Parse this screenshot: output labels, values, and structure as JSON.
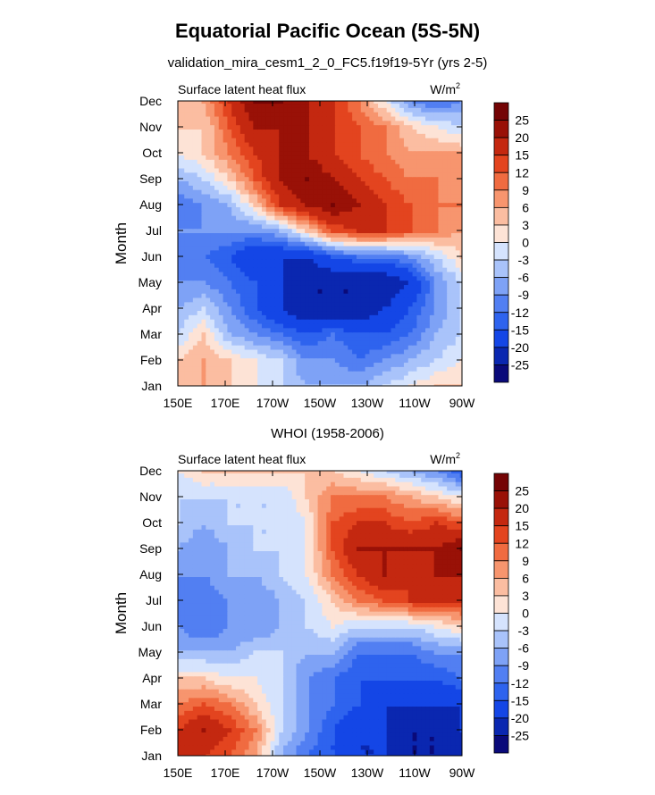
{
  "figure": {
    "title": "Equatorial Pacific Ocean (5S-5N)",
    "panel1_title": "validation_mira_cesm1_2_0_FC5.f19f19-5Yr (yrs 2-5)",
    "panel2_title": "WHOI (1958-2006)"
  },
  "chart_data": [
    {
      "type": "heatmap",
      "title": "validation_mira_cesm1_2_0_FC5.f19f19-5Yr (yrs 2-5)",
      "left_string": "Surface latent heat flux",
      "right_string": "W/m",
      "right_string_sup": "2",
      "xlabel": "",
      "ylabel": "Month",
      "x": [
        "150E",
        "170E",
        "170W",
        "150W",
        "130W",
        "110W",
        "90W"
      ],
      "y": [
        "Jan",
        "Feb",
        "Mar",
        "Apr",
        "May",
        "Jun",
        "Jul",
        "Aug",
        "Sep",
        "Oct",
        "Nov",
        "Dec"
      ],
      "xlim": [
        150,
        270
      ],
      "ylim": [
        1,
        12
      ],
      "z": [
        [
          3,
          6,
          3,
          0,
          -3,
          -6,
          -6,
          -6,
          -3,
          0,
          3,
          3
        ],
        [
          3,
          6,
          3,
          0,
          -3,
          -9,
          -9,
          -12,
          -9,
          -6,
          -3,
          0
        ],
        [
          -3,
          3,
          -6,
          -9,
          -12,
          -15,
          -12,
          -15,
          -15,
          -12,
          -6,
          -3
        ],
        [
          -6,
          -3,
          -9,
          -15,
          -20,
          -25,
          -25,
          -25,
          -20,
          -15,
          -9,
          -3
        ],
        [
          -9,
          -9,
          -12,
          -15,
          -20,
          -25,
          -25,
          -25,
          -25,
          -20,
          -9,
          -3
        ],
        [
          -12,
          -12,
          -15,
          -20,
          -20,
          -20,
          -15,
          -12,
          -12,
          -9,
          -3,
          3
        ],
        [
          -9,
          -9,
          -9,
          -9,
          -6,
          3,
          12,
          15,
          15,
          12,
          9,
          6
        ],
        [
          -12,
          -9,
          -6,
          3,
          15,
          20,
          25,
          20,
          15,
          12,
          9,
          9
        ],
        [
          -6,
          -3,
          3,
          12,
          20,
          25,
          20,
          15,
          12,
          9,
          9,
          6
        ],
        [
          0,
          3,
          9,
          15,
          20,
          20,
          15,
          12,
          9,
          6,
          6,
          6
        ],
        [
          3,
          3,
          12,
          20,
          20,
          20,
          15,
          12,
          9,
          3,
          0,
          -3
        ],
        [
          3,
          6,
          15,
          25,
          25,
          20,
          15,
          9,
          0,
          -9,
          -12,
          -9
        ]
      ],
      "colorbar_levels": [
        25,
        20,
        15,
        12,
        9,
        6,
        3,
        0,
        -3,
        -6,
        -9,
        -12,
        -15,
        -20,
        -25
      ]
    },
    {
      "type": "heatmap",
      "title": "WHOI (1958-2006)",
      "left_string": "Surface latent heat flux",
      "right_string": "W/m",
      "right_string_sup": "2",
      "xlabel": "",
      "ylabel": "Month",
      "x": [
        "150E",
        "170E",
        "170W",
        "150W",
        "130W",
        "110W",
        "90W"
      ],
      "y": [
        "Jan",
        "Feb",
        "Mar",
        "Apr",
        "May",
        "Jun",
        "Jul",
        "Aug",
        "Sep",
        "Oct",
        "Nov",
        "Dec"
      ],
      "xlim": [
        150,
        270
      ],
      "ylim": [
        1,
        12
      ],
      "z": [
        [
          15,
          15,
          12,
          6,
          -6,
          -12,
          -15,
          -20,
          -20,
          -25,
          -25,
          -25
        ],
        [
          15,
          20,
          15,
          9,
          -3,
          -9,
          -15,
          -20,
          -20,
          -25,
          -25,
          -20
        ],
        [
          9,
          12,
          9,
          3,
          -3,
          -9,
          -12,
          -15,
          -20,
          -20,
          -20,
          -20
        ],
        [
          3,
          3,
          0,
          0,
          -3,
          -9,
          -12,
          -15,
          -15,
          -15,
          -15,
          -12
        ],
        [
          -6,
          -6,
          -6,
          -3,
          -3,
          -6,
          -6,
          -12,
          -12,
          -12,
          -9,
          -9
        ],
        [
          -9,
          -12,
          -9,
          -9,
          -6,
          -3,
          0,
          -3,
          -3,
          -3,
          0,
          3
        ],
        [
          -12,
          -12,
          -9,
          -9,
          -6,
          -3,
          3,
          9,
          12,
          15,
          15,
          15
        ],
        [
          -9,
          -9,
          -6,
          -6,
          -3,
          0,
          9,
          15,
          20,
          15,
          20,
          20
        ],
        [
          -6,
          -9,
          -6,
          -3,
          -3,
          0,
          12,
          20,
          20,
          20,
          20,
          25
        ],
        [
          -3,
          -6,
          -3,
          -3,
          -3,
          0,
          12,
          15,
          15,
          12,
          15,
          12
        ],
        [
          -3,
          -3,
          -3,
          -3,
          -3,
          3,
          9,
          9,
          9,
          6,
          3,
          0
        ],
        [
          0,
          3,
          3,
          3,
          3,
          3,
          3,
          0,
          -3,
          -6,
          -9,
          -15
        ]
      ],
      "colorbar_levels": [
        25,
        20,
        15,
        12,
        9,
        6,
        3,
        0,
        -3,
        -6,
        -9,
        -12,
        -15,
        -20,
        -25
      ]
    }
  ],
  "colors": {
    "scale": [
      "#0a0a7a",
      "#0a27b0",
      "#1446e6",
      "#2e63ee",
      "#527ff2",
      "#7ea2f6",
      "#a9c3fa",
      "#d5e3fd",
      "#fde3d6",
      "#fbbda1",
      "#f7956e",
      "#f06b40",
      "#e3441f",
      "#c42810",
      "#991107",
      "#740405"
    ]
  }
}
